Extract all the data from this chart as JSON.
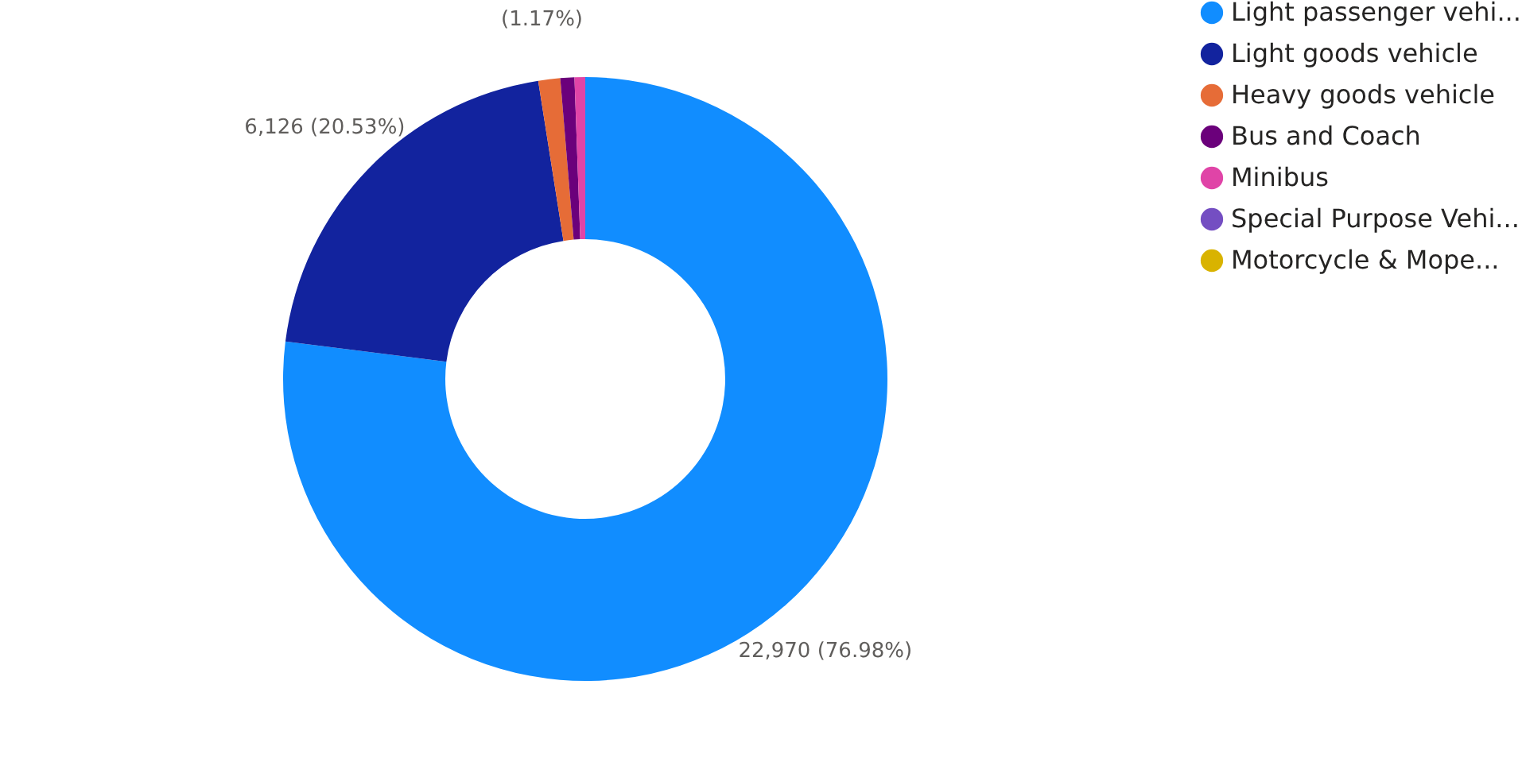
{
  "chart_data": {
    "type": "donut",
    "categories": [
      "Light passenger vehi...",
      "Light goods vehicle",
      "Heavy goods vehicle",
      "Bus and Coach",
      "Minibus",
      "Special Purpose Vehi...",
      "Motorcycle & Mope..."
    ],
    "values": [
      76.98,
      20.53,
      1.17,
      0.75,
      0.57,
      0,
      0
    ],
    "colors": [
      "#118dff",
      "#12239e",
      "#e66c37",
      "#6b007b",
      "#e044a7",
      "#744ec2",
      "#d9b300"
    ],
    "value_labels": [
      "22,970 (76.98%)",
      "6,126 (20.53%)",
      "(1.17%)",
      null,
      null,
      null,
      null
    ],
    "legend": "right"
  }
}
